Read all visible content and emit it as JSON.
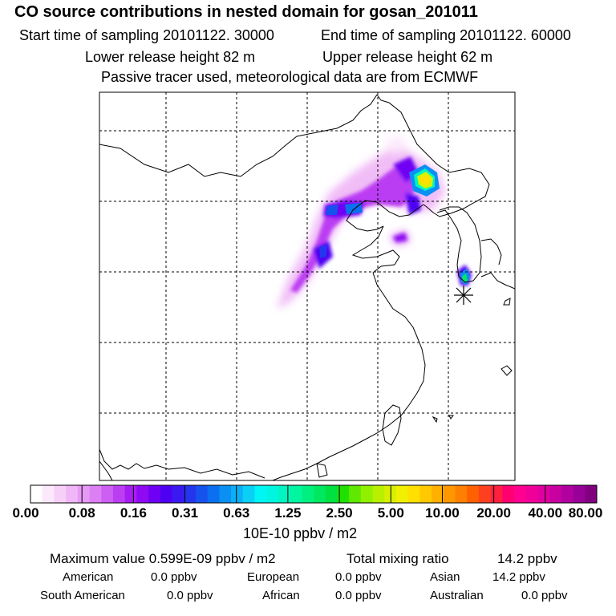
{
  "header": {
    "title": "CO  source contributions in nested domain for gosan_201011",
    "start_time_label": "Start time of sampling 20101122. 30000",
    "end_time_label": "End time of sampling 20101122. 60000",
    "lower_height_label": "Lower release height   82 m",
    "upper_height_label": "Upper release height   62 m",
    "tracer_note": "Passive tracer used, meteorological data are from ECMWF"
  },
  "legend": {
    "labels": [
      "0.00",
      "0.08",
      "0.16",
      "0.31",
      "0.63",
      "1.25",
      "2.50",
      "5.00",
      "10.00",
      "20.00",
      "40.00",
      "80.00"
    ],
    "unit": "10E-10 ppbv / m2",
    "colors": [
      "#ffffff",
      "#fbe8fb",
      "#f7d0f7",
      "#f0b6f6",
      "#e79af5",
      "#dc7ff4",
      "#cd5ff3",
      "#bb3ef3",
      "#a71cf3",
      "#8f0af3",
      "#6f00f3",
      "#4e00f3",
      "#3a18f0",
      "#2535ee",
      "#1552ee",
      "#0a6ff0",
      "#0a8ff3",
      "#0aaff5",
      "#0ad0f5",
      "#00f5f5",
      "#00f5e0",
      "#00f5c0",
      "#00f5a0",
      "#00f080",
      "#00e860",
      "#00e040",
      "#20e000",
      "#60e800",
      "#90f000",
      "#b8f000",
      "#d8f000",
      "#f0f000",
      "#ffe000",
      "#ffc800",
      "#ffb000",
      "#ff9800",
      "#ff8000",
      "#ff6000",
      "#ff4020",
      "#ff2040",
      "#ff0070",
      "#ff0090",
      "#f00098",
      "#e000a0",
      "#c800a0",
      "#b000a0",
      "#980098",
      "#800080"
    ]
  },
  "stats": {
    "max_label": "Maximum value  0.599E-09 ppbv / m2",
    "total_label": "Total mixing ratio",
    "total_value": "14.2 ppbv",
    "regions": [
      {
        "name": "American",
        "value": "0.0 ppbv"
      },
      {
        "name": "European",
        "value": "0.0 ppbv"
      },
      {
        "name": "Asian",
        "value": "14.2 ppbv"
      },
      {
        "name": "South American",
        "value": "0.0 ppbv"
      },
      {
        "name": "African",
        "value": "0.0 ppbv"
      },
      {
        "name": "Australian",
        "value": "0.0 ppbv"
      }
    ]
  }
}
